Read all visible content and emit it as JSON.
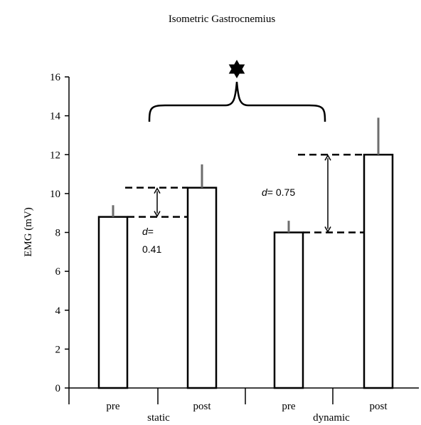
{
  "chart_data": {
    "type": "bar",
    "title": "Isometric Gastrocnemius",
    "xlabel": "",
    "ylabel": "EMG (mV)",
    "ylim": [
      0,
      16
    ],
    "yticks": [
      0,
      2,
      4,
      6,
      8,
      10,
      12,
      14,
      16
    ],
    "groups": [
      {
        "label": "static",
        "categories": [
          "pre",
          "post"
        ]
      },
      {
        "label": "dynamic",
        "categories": [
          "pre",
          "post"
        ]
      }
    ],
    "bars": [
      {
        "group": "static",
        "label": "pre",
        "value": 8.8,
        "error": 0.6
      },
      {
        "group": "static",
        "label": "post",
        "value": 10.3,
        "error": 1.2
      },
      {
        "group": "dynamic",
        "label": "pre",
        "value": 8.0,
        "error": 0.6
      },
      {
        "group": "dynamic",
        "label": "post",
        "value": 12.0,
        "error": 1.9
      }
    ],
    "annotations": [
      {
        "group": "static",
        "text_prefix": "d",
        "text_suffix": "=",
        "text_value": "0.41",
        "from": 8.8,
        "to": 10.3
      },
      {
        "group": "dynamic",
        "text_prefix": "d",
        "text_suffix": "= ",
        "text_value": "0.75",
        "from": 8.0,
        "to": 12.0
      }
    ],
    "significance_marker": "✶",
    "grid": false
  }
}
